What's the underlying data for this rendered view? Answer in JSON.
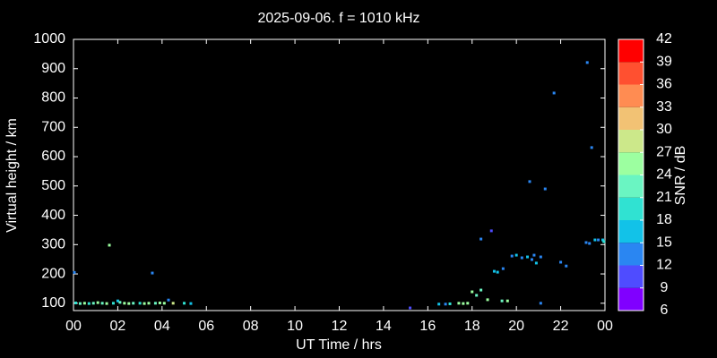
{
  "chart_data": {
    "type": "scatter",
    "title": "2025-09-06. f = 1010 kHz",
    "xlabel": "UT Time / hrs",
    "ylabel": "Virtual height / km",
    "xlim": [
      0,
      24
    ],
    "ylim": [
      75,
      1000
    ],
    "xticks": [
      {
        "value": 0,
        "label": "00"
      },
      {
        "value": 2,
        "label": "02"
      },
      {
        "value": 4,
        "label": "04"
      },
      {
        "value": 6,
        "label": "06"
      },
      {
        "value": 8,
        "label": "08"
      },
      10,
      12,
      14,
      16,
      18,
      20,
      22,
      {
        "value": 24,
        "label": "00"
      }
    ],
    "yticks": [
      100,
      200,
      300,
      400,
      500,
      600,
      700,
      800,
      900,
      1000
    ],
    "x": [
      0.04,
      0.1,
      0.3,
      0.5,
      0.7,
      0.9,
      1.1,
      1.3,
      1.5,
      1.62,
      1.8,
      2.0,
      2.1,
      2.3,
      2.5,
      2.7,
      3.0,
      3.2,
      3.4,
      3.56,
      3.7,
      3.9,
      4.1,
      4.29,
      4.5,
      5.0,
      5.3,
      15.2,
      16.5,
      16.8,
      17.0,
      17.4,
      17.6,
      17.8,
      18.0,
      18.2,
      18.4,
      18.4,
      18.7,
      18.87,
      19.0,
      19.15,
      19.35,
      19.4,
      19.6,
      19.8,
      20.0,
      20.25,
      20.5,
      20.6,
      20.7,
      20.8,
      20.9,
      21.1,
      21.1,
      21.3,
      21.7,
      22.0,
      22.25,
      23.2,
      23.4,
      23.15,
      23.3,
      23.55,
      23.7,
      23.9,
      23.95
    ],
    "y": [
      205,
      101,
      99,
      100,
      99,
      100,
      102,
      100,
      99,
      298,
      100,
      108,
      103,
      100,
      99,
      100,
      100,
      99,
      100,
      203,
      100,
      101,
      100,
      111,
      100,
      100,
      99,
      84,
      97,
      97,
      98,
      100,
      99,
      100,
      139,
      127,
      145,
      319,
      112,
      347,
      209,
      206,
      108,
      218,
      108,
      261,
      264,
      255,
      258,
      515,
      249,
      264,
      237,
      258,
      100,
      490,
      817,
      240,
      227,
      921,
      631,
      307,
      304,
      316,
      316,
      316,
      310
    ],
    "snr": [
      13,
      20,
      22,
      24,
      19,
      23,
      25,
      21,
      24,
      26,
      18,
      16,
      22,
      24,
      26,
      23,
      20,
      25,
      24,
      14,
      22,
      26,
      24,
      12,
      27,
      19,
      15,
      10,
      16,
      14,
      20,
      24,
      26,
      25,
      26,
      23,
      21,
      13,
      24,
      11,
      16,
      15,
      22,
      13,
      24,
      14,
      16,
      13,
      15,
      13,
      14,
      13,
      15,
      14,
      12,
      12,
      13,
      14,
      13,
      13,
      14,
      12,
      13,
      15,
      14,
      16,
      20
    ],
    "colorbar": {
      "label": "SNR / dB",
      "lim": [
        6,
        42
      ],
      "ticks": [
        6,
        9,
        12,
        15,
        18,
        21,
        24,
        27,
        30,
        33,
        36,
        39,
        42
      ],
      "colors": [
        "#8000ff",
        "#4f4cff",
        "#2a86f2",
        "#12c2e8",
        "#30e2d2",
        "#6af5c2",
        "#9cffa0",
        "#cce88a",
        "#f2c274",
        "#ff8c52",
        "#ff5030",
        "#ff0000"
      ]
    }
  }
}
